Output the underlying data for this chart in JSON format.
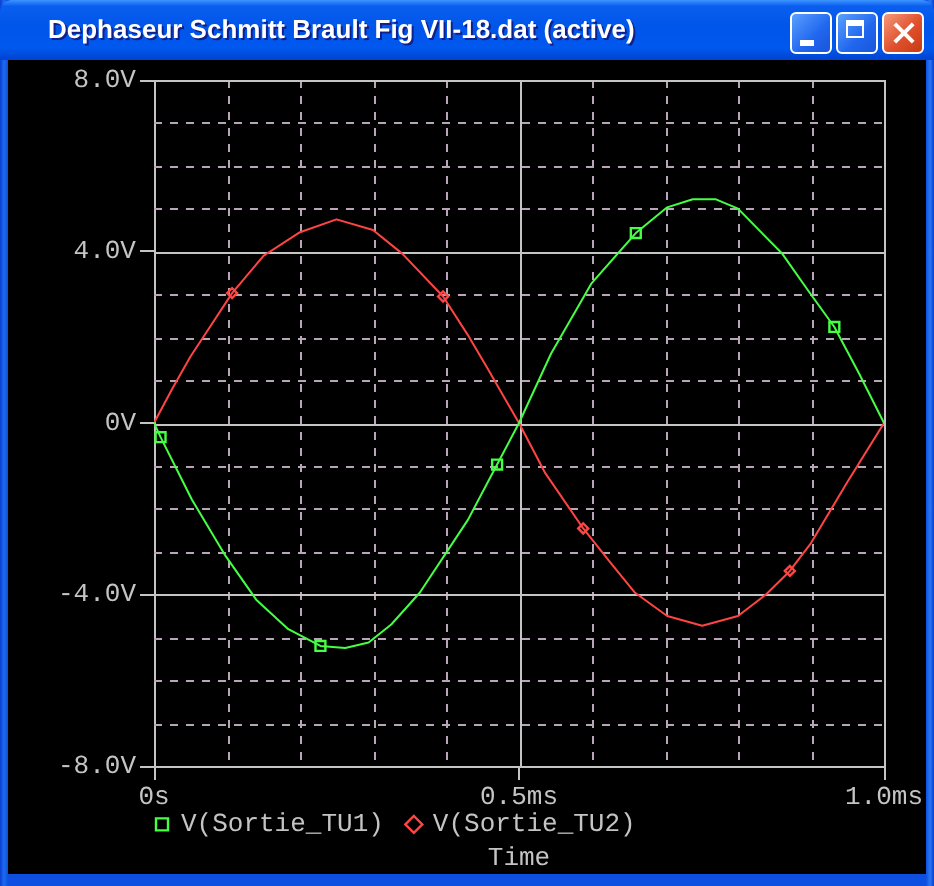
{
  "chart_data": {
    "type": "line",
    "title": "Dephaseur Schmitt Brault Fig VII-18.dat (active)",
    "xlabel": "Time",
    "xlim": [
      0,
      1
    ],
    "xticks": [
      {
        "value": 0,
        "label": "0s"
      },
      {
        "value": 0.1,
        "label": null
      },
      {
        "value": 0.2,
        "label": null
      },
      {
        "value": 0.3,
        "label": null
      },
      {
        "value": 0.4,
        "label": null
      },
      {
        "value": 0.5,
        "label": "0.5ms"
      },
      {
        "value": 0.6,
        "label": null
      },
      {
        "value": 0.7,
        "label": null
      },
      {
        "value": 0.8,
        "label": null
      },
      {
        "value": 0.9,
        "label": null
      },
      {
        "value": 1,
        "label": "1.0ms"
      }
    ],
    "ylim": [
      -8,
      8
    ],
    "yticks": [
      {
        "value": -8,
        "label": "-8.0V"
      },
      {
        "value": -7,
        "label": null
      },
      {
        "value": -6,
        "label": null
      },
      {
        "value": -5,
        "label": null
      },
      {
        "value": -4,
        "label": "-4.0V"
      },
      {
        "value": -3,
        "label": null
      },
      {
        "value": -2,
        "label": null
      },
      {
        "value": -1,
        "label": null
      },
      {
        "value": 0,
        "label": "0V"
      },
      {
        "value": 1,
        "label": null
      },
      {
        "value": 2,
        "label": null
      },
      {
        "value": 3,
        "label": null
      },
      {
        "value": 4,
        "label": "4.0V"
      },
      {
        "value": 5,
        "label": null
      },
      {
        "value": 6,
        "label": null
      },
      {
        "value": 7,
        "label": null
      },
      {
        "value": 8,
        "label": "8.0V"
      }
    ],
    "grid": true,
    "legend": "bottom",
    "series": [
      {
        "color": "#44ff44",
        "marker": "none",
        "x": [
          0,
          0.009,
          0.052,
          0.098,
          0.14,
          0.184,
          0.228,
          0.262,
          0.294,
          0.325,
          0.364,
          0.404,
          0.43,
          0.47,
          0.5,
          0.544,
          0.599,
          0.66,
          0.703,
          0.738,
          0.769,
          0.8,
          0.861,
          0.896,
          0.932,
          0.966,
          1
        ],
        "values": [
          0,
          -0.33,
          -1.79,
          -3.1,
          -4.12,
          -4.81,
          -5.2,
          -5.25,
          -5.12,
          -4.7,
          -3.96,
          -2.93,
          -2.26,
          -0.97,
          0,
          1.62,
          3.25,
          4.43,
          5.03,
          5.22,
          5.22,
          5.0,
          3.94,
          3.09,
          2.24,
          1.15,
          0
        ]
      },
      {
        "color": "#ff4444",
        "marker": "none",
        "x": [
          0,
          0.025,
          0.05,
          0.075,
          0.107,
          0.15,
          0.2,
          0.25,
          0.3,
          0.34,
          0.396,
          0.43,
          0.456,
          0.5,
          0.536,
          0.588,
          0.625,
          0.659,
          0.703,
          0.751,
          0.8,
          0.839,
          0.871,
          0.9,
          0.949,
          1
        ],
        "values": [
          0,
          0.8,
          1.55,
          2.2,
          3.03,
          3.9,
          4.45,
          4.75,
          4.5,
          3.95,
          2.95,
          2.05,
          1.3,
          0,
          -1.17,
          -2.46,
          -3.25,
          -3.96,
          -4.5,
          -4.73,
          -4.5,
          -3.99,
          -3.45,
          -2.8,
          -1.4,
          0
        ]
      },
      {
        "type": "scatter",
        "name": "V(Sortie_TU1)",
        "color": "#44ff44",
        "marker": "square",
        "x": [
          0.009,
          0.228,
          0.47,
          0.66,
          0.932
        ],
        "values": [
          -0.33,
          -5.2,
          -0.97,
          4.43,
          2.24
        ]
      },
      {
        "type": "scatter",
        "name": "V(Sortie_TU2)",
        "color": "#ff4444",
        "marker": "diamond",
        "x": [
          0.107,
          0.396,
          0.588,
          0.871
        ],
        "values": [
          3.03,
          2.95,
          -2.46,
          -3.45
        ]
      }
    ]
  }
}
